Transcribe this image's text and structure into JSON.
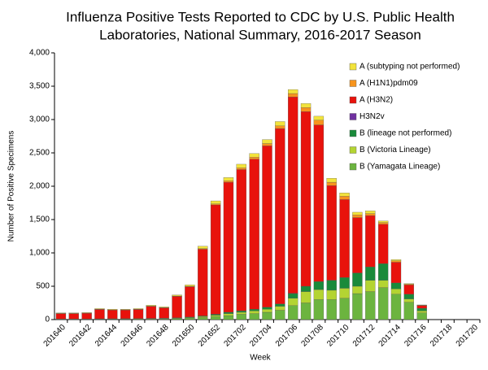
{
  "chart_data": {
    "type": "stacked-bar",
    "title": [
      "Influenza Positive Tests Reported to CDC by U.S. Public Health",
      "Laboratories, National Summary, 2016-2017 Season"
    ],
    "x_label": "Week",
    "y_label": "Number of Positive Specimens",
    "categories": [
      "201640",
      null,
      "201642",
      null,
      "201644",
      null,
      "201646",
      null,
      "201648",
      null,
      "201650",
      null,
      "201652",
      null,
      "201702",
      null,
      "201704",
      null,
      "201706",
      null,
      "201708",
      null,
      "201710",
      null,
      "201712",
      null,
      "201714",
      null,
      "201716",
      null,
      "201718",
      null,
      "201720"
    ],
    "ylim": [
      0,
      4000
    ],
    "yticks": [
      0,
      500,
      {
        "value": 1000,
        "label": "1,000"
      },
      {
        "value": 1500,
        "label": "1,500"
      },
      {
        "value": 2000,
        "label": "2,000"
      },
      {
        "value": 2500,
        "label": "2,500"
      },
      {
        "value": 3000,
        "label": "3,000"
      },
      {
        "value": 3500,
        "label": "3,500"
      },
      {
        "value": 4000,
        "label": "4,000"
      }
    ],
    "legend": "top-right",
    "series": [
      {
        "name": "A (subtyping not performed)",
        "color": "#f2e33b",
        "values": [
          7,
          7,
          7,
          9,
          9,
          8,
          9,
          12,
          10,
          16,
          20,
          35,
          45,
          50,
          55,
          55,
          60,
          65,
          60,
          60,
          60,
          60,
          50,
          40,
          40,
          25,
          20,
          10,
          5,
          null,
          null,
          null,
          null
        ]
      },
      {
        "name": "A (H1N1)pdm09",
        "color": "#f7941d",
        "values": [
          3,
          3,
          3,
          4,
          3,
          3,
          4,
          5,
          4,
          6,
          7,
          10,
          15,
          20,
          25,
          30,
          35,
          40,
          50,
          60,
          70,
          50,
          50,
          40,
          30,
          25,
          20,
          10,
          5,
          null,
          null,
          null,
          null
        ]
      },
      {
        "name": "A (H3N2)",
        "color": "#e8120c",
        "values": [
          80,
          80,
          85,
          140,
          130,
          130,
          136,
          180,
          155,
          320,
          455,
          1000,
          1640,
          1950,
          2120,
          2250,
          2420,
          2630,
          2945,
          2620,
          2350,
          1420,
          1170,
          830,
          770,
          590,
          310,
          140,
          40,
          null,
          null,
          null,
          null
        ]
      },
      {
        "name": "H3N2v",
        "color": "#7030a0",
        "values": [
          0,
          0,
          0,
          0,
          0,
          0,
          0,
          0,
          0,
          0,
          0,
          0,
          0,
          0,
          0,
          0,
          0,
          0,
          5,
          0,
          0,
          0,
          0,
          0,
          0,
          0,
          0,
          0,
          0,
          null,
          null,
          null,
          null
        ]
      },
      {
        "name": "B (lineage not performed)",
        "color": "#1a8a3a",
        "values": [
          2,
          2,
          2,
          3,
          3,
          3,
          4,
          4,
          5,
          6,
          8,
          10,
          15,
          20,
          20,
          25,
          30,
          35,
          70,
          80,
          120,
          150,
          160,
          200,
          200,
          250,
          90,
          70,
          40,
          null,
          null,
          null,
          null
        ]
      },
      {
        "name": "B (Victoria Lineage)",
        "color": "#b4d432",
        "values": [
          3,
          3,
          3,
          3,
          4,
          4,
          4,
          5,
          6,
          8,
          10,
          15,
          20,
          30,
          30,
          40,
          45,
          60,
          110,
          170,
          150,
          140,
          150,
          110,
          170,
          110,
          80,
          50,
          30,
          null,
          null,
          null,
          null
        ]
      },
      {
        "name": "B (Yamagata Lineage)",
        "color": "#6cb43f",
        "values": [
          5,
          5,
          5,
          6,
          6,
          7,
          8,
          9,
          10,
          14,
          20,
          30,
          45,
          60,
          80,
          90,
          110,
          140,
          210,
          250,
          300,
          300,
          320,
          390,
          420,
          480,
          380,
          260,
          100,
          null,
          null,
          null,
          null
        ]
      }
    ]
  }
}
